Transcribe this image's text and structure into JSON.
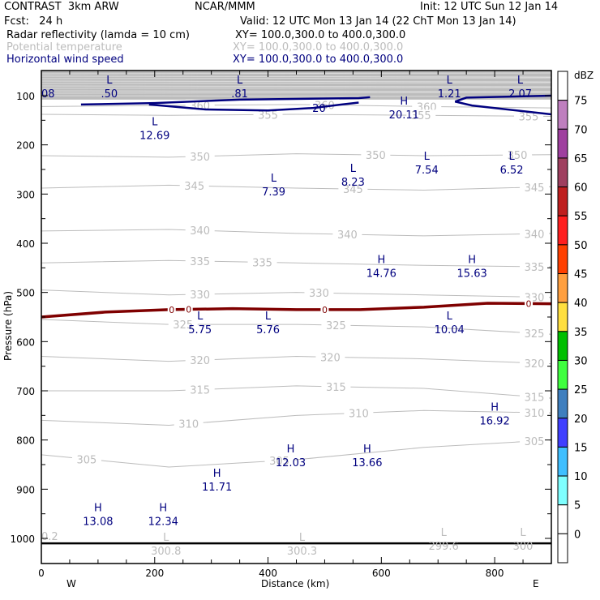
{
  "header": {
    "model": "CONTRAST  3km ARW",
    "org": "NCAR/MMM",
    "init": "Init: 12 UTC Sun 12 Jan 14",
    "fcst": "Fcst:   24 h",
    "valid": "Valid: 12 UTC Mon 13 Jan 14 (22 ChT Mon 13 Jan 14)",
    "fields": [
      {
        "name": "Radar reflectivity (lamda = 10 cm)",
        "xy": "XY= 100.0,300.0 to 400.0,300.0",
        "color": "#000000"
      },
      {
        "name": "Potential temperature",
        "xy": "XY= 100.0,300.0 to 400.0,300.0",
        "color": "#bcbcbc"
      },
      {
        "name": "Horizontal wind speed",
        "xy": "XY= 100.0,300.0 to 400.0,300.0",
        "color": "#00007f"
      }
    ]
  },
  "chart_data": {
    "type": "contour",
    "title": "Vertical cross-section",
    "xlabel": "Distance (km)",
    "ylabel": "Pressure (hPa)",
    "xlim": [
      0,
      900
    ],
    "ylim": [
      1080,
      50
    ],
    "x_ticks": [
      0,
      200,
      400,
      600,
      800
    ],
    "y_ticks": [
      100,
      200,
      300,
      400,
      500,
      600,
      700,
      800,
      900,
      1000
    ],
    "x_end_labels": {
      "left": "W",
      "right": "E"
    },
    "colorbar": {
      "units": "dBZ",
      "levels": [
        0,
        5,
        10,
        15,
        20,
        25,
        30,
        35,
        40,
        45,
        50,
        55,
        60,
        65,
        70,
        75
      ],
      "colors": [
        "#ffffff",
        "#ffffff",
        "#7fffff",
        "#3fbfff",
        "#3f3fff",
        "#3f7fbf",
        "#3fff3f",
        "#00bf00",
        "#ffdf3f",
        "#ff9f3f",
        "#ff3f00",
        "#ff1f1f",
        "#bf1f1f",
        "#9f3f5f",
        "#9f3f9f",
        "#bf7fbf",
        "#ffffff"
      ]
    },
    "theta_contours": [
      {
        "level": 360,
        "label_x": [
          280,
          500,
          680
        ],
        "p": [
          122,
          120,
          118,
          122,
          125
        ]
      },
      {
        "level": 355,
        "label_x": [
          400,
          670,
          860
        ],
        "p": [
          138,
          140,
          138,
          140,
          142
        ]
      },
      {
        "level": 350,
        "label_x": [
          280,
          590,
          840
        ],
        "p": [
          222,
          225,
          218,
          222,
          220
        ]
      },
      {
        "level": 345,
        "label_x": [
          270,
          550,
          870
        ],
        "p": [
          288,
          282,
          288,
          292,
          285
        ]
      },
      {
        "level": 340,
        "label_x": [
          280,
          540,
          870
        ],
        "p": [
          375,
          372,
          380,
          385,
          380
        ]
      },
      {
        "level": 335,
        "label_x": [
          280,
          390,
          870
        ],
        "p": [
          440,
          435,
          440,
          445,
          448
        ]
      },
      {
        "level": 330,
        "label_x": [
          280,
          490,
          870
        ],
        "p": [
          495,
          505,
          500,
          505,
          510
        ]
      },
      {
        "level": 325,
        "label_x": [
          250,
          520,
          870
        ],
        "p": [
          555,
          565,
          565,
          570,
          585
        ]
      },
      {
        "level": 320,
        "label_x": [
          280,
          510,
          870
        ],
        "p": [
          630,
          640,
          630,
          635,
          645
        ]
      },
      {
        "level": 315,
        "label_x": [
          280,
          520,
          870
        ],
        "p": [
          700,
          700,
          690,
          695,
          715
        ]
      },
      {
        "level": 310,
        "label_x": [
          260,
          560,
          870
        ],
        "p": [
          760,
          770,
          750,
          740,
          745
        ]
      },
      {
        "level": 305,
        "label_x": [
          80,
          420,
          870
        ],
        "p": [
          830,
          855,
          840,
          815,
          800
        ]
      }
    ],
    "theta_extrema": [
      {
        "type": "L",
        "value": "300.8",
        "x": 220,
        "p": 1005
      },
      {
        "type": "L",
        "value": "300.3",
        "x": 460,
        "p": 1005
      },
      {
        "type": "L",
        "value": "299.6",
        "x": 710,
        "p": 995
      },
      {
        "type": "L",
        "value": "300",
        "x": 850,
        "p": 995
      },
      {
        "type": "",
        "value": "0.2",
        "x": 0,
        "p": 975
      }
    ],
    "wind_extrema": [
      {
        "type": "",
        "value": "08",
        "x": 0,
        "p": 75
      },
      {
        "type": "L",
        "value": ".50",
        "x": 120,
        "p": 75
      },
      {
        "type": "L",
        "value": ".81",
        "x": 350,
        "p": 75
      },
      {
        "type": "L",
        "value": "1.21",
        "x": 720,
        "p": 75
      },
      {
        "type": "L",
        "value": "2.07",
        "x": 845,
        "p": 75
      },
      {
        "type": "H",
        "value": "20.11",
        "x": 640,
        "p": 118
      },
      {
        "type": "L",
        "value": "12.69",
        "x": 200,
        "p": 160
      },
      {
        "type": "L",
        "value": "8.23",
        "x": 550,
        "p": 255
      },
      {
        "type": "L",
        "value": "7.54",
        "x": 680,
        "p": 230
      },
      {
        "type": "L",
        "value": "6.52",
        "x": 830,
        "p": 230
      },
      {
        "type": "L",
        "value": "7.39",
        "x": 410,
        "p": 275
      },
      {
        "type": "H",
        "value": "14.76",
        "x": 600,
        "p": 440
      },
      {
        "type": "H",
        "value": "15.63",
        "x": 760,
        "p": 440
      },
      {
        "type": "L",
        "value": "5.75",
        "x": 280,
        "p": 555
      },
      {
        "type": "L",
        "value": "5.76",
        "x": 400,
        "p": 555
      },
      {
        "type": "L",
        "value": "10.04",
        "x": 720,
        "p": 555
      },
      {
        "type": "H",
        "value": "16.92",
        "x": 800,
        "p": 740
      },
      {
        "type": "H",
        "value": "12.03",
        "x": 440,
        "p": 825
      },
      {
        "type": "H",
        "value": "13.66",
        "x": 575,
        "p": 825
      },
      {
        "type": "H",
        "value": "11.71",
        "x": 310,
        "p": 875
      },
      {
        "type": "H",
        "value": "13.08",
        "x": 100,
        "p": 945
      },
      {
        "type": "H",
        "value": "12.34",
        "x": 215,
        "p": 945
      }
    ],
    "wind_contour_label": "20",
    "reflectivity_contour_label": "0",
    "reflectivity_zero_line_p": [
      550,
      540,
      535,
      533,
      535,
      535,
      530,
      522,
      523
    ],
    "ground_p": 1010
  }
}
